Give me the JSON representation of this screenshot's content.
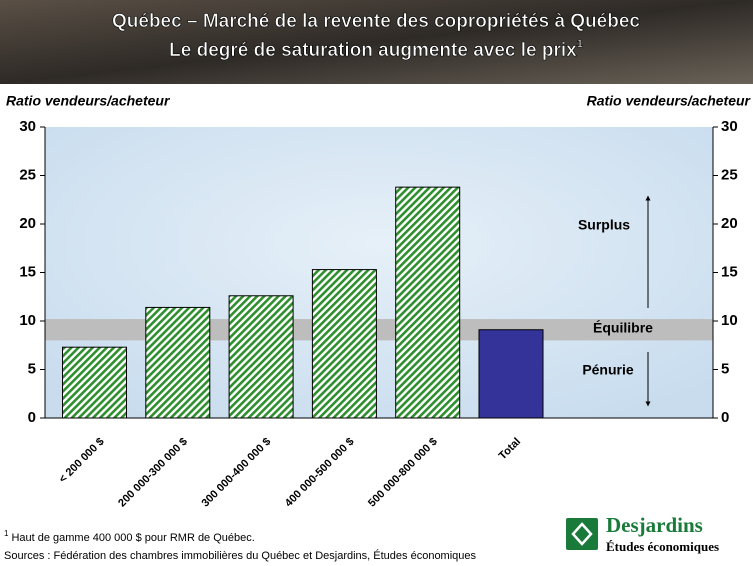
{
  "chart_data": {
    "type": "bar",
    "title": [
      "Québec – Marché de la revente des copropriétés à Québec",
      "Le degré de saturation augmente avec le prix"
    ],
    "title_note_marker": "1",
    "y_axis_label": "Ratio vendeurs/acheteur",
    "y2_axis_label": "Ratio vendeurs/acheteur",
    "categories": [
      "< 200 000 $",
      "200 000-300 000 $",
      "300 000-400 000 $",
      "400 000-500 000 $",
      "500 000-800 000 $",
      "Total"
    ],
    "values": [
      7.3,
      11.4,
      12.6,
      15.3,
      23.8,
      9.1
    ],
    "colors": [
      "#2f8f2f",
      "#2f8f2f",
      "#2f8f2f",
      "#2f8f2f",
      "#2f8f2f",
      "#333399"
    ],
    "hatched": [
      true,
      true,
      true,
      true,
      true,
      false
    ],
    "ylim": [
      0,
      30
    ],
    "yticks": [
      0,
      5,
      10,
      15,
      20,
      25,
      30
    ],
    "y2lim": [
      0,
      30
    ],
    "y2ticks": [
      0,
      5,
      10,
      15,
      20,
      25,
      30
    ],
    "equilibrium_band": [
      8,
      10.2
    ],
    "annotations": [
      "Surplus",
      "Équilibre",
      "Pénurie"
    ],
    "footnote_marker": "1",
    "footnote": "Haut de gamme 400 000 $ pour RMR de Québec.",
    "source": "Sources : Fédération des chambres immobilières du Québec et Desjardins, Études économiques",
    "logo": {
      "name": "Desjardins",
      "subtitle": "Études économiques"
    }
  }
}
